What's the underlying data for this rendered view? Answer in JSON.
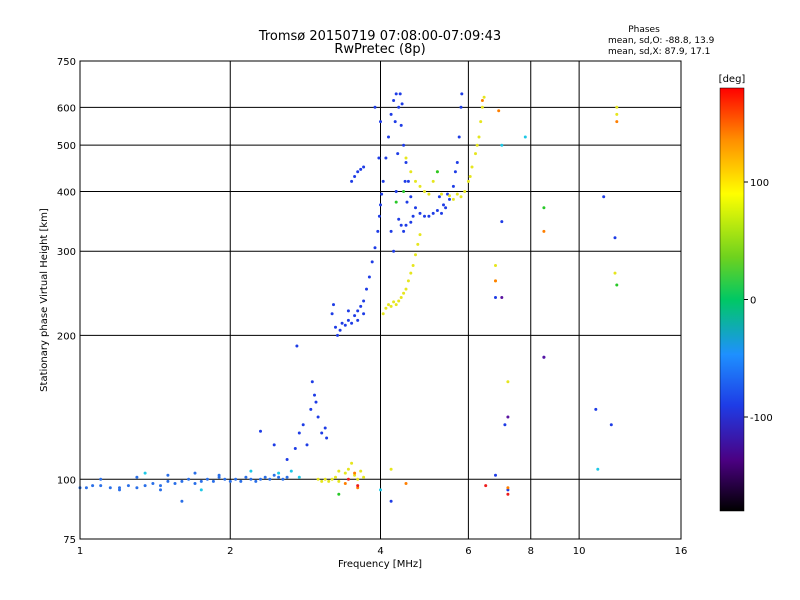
{
  "chart_data": {
    "type": "scatter",
    "title": "Tromsø 20150719 07:08:00-07:09:43",
    "subtitle": "RwPretec (8p)",
    "xlabel": "Frequency [MHz]",
    "ylabel": "Stationary phase Virtual Height [km]",
    "x_scale": "log",
    "y_scale": "log",
    "xlim": [
      1,
      16
    ],
    "ylim": [
      75,
      750
    ],
    "x_ticks": [
      1,
      2,
      4,
      6,
      8,
      10,
      16
    ],
    "x_tick_labels": [
      "1",
      "2",
      "4",
      "6",
      "8",
      "10",
      "16"
    ],
    "y_ticks": [
      75,
      100,
      200,
      300,
      400,
      500,
      600,
      750
    ],
    "y_tick_labels": [
      "75",
      "100",
      "200",
      "300",
      "400",
      "500",
      "600",
      "750"
    ],
    "grid": true,
    "phases_box": {
      "heading": "Phases",
      "line_o": "mean, sd,O: -88.8, 13.9",
      "line_x": "mean, sd,X:  87.9, 17.1"
    },
    "colorbar": {
      "label": "[deg]",
      "range": [
        -180,
        180
      ],
      "ticks": [
        100,
        0,
        -100
      ],
      "tick_labels": [
        "100",
        "0",
        "-100"
      ]
    },
    "series": [
      {
        "phase": -95,
        "color": "#2a6fe8",
        "points": [
          [
            1.0,
            96
          ],
          [
            1.03,
            96
          ],
          [
            1.06,
            97
          ],
          [
            1.1,
            97
          ],
          [
            1.15,
            96
          ],
          [
            1.2,
            96
          ],
          [
            1.25,
            97
          ],
          [
            1.3,
            96
          ],
          [
            1.35,
            97
          ],
          [
            1.4,
            98
          ],
          [
            1.45,
            97
          ],
          [
            1.5,
            99
          ],
          [
            1.55,
            98
          ],
          [
            1.6,
            99
          ],
          [
            1.65,
            100
          ],
          [
            1.7,
            98
          ],
          [
            1.75,
            99
          ],
          [
            1.8,
            100
          ],
          [
            1.85,
            99
          ],
          [
            1.9,
            101
          ],
          [
            1.95,
            100
          ],
          [
            2.0,
            99
          ],
          [
            2.05,
            100
          ],
          [
            2.1,
            99
          ],
          [
            2.15,
            101
          ],
          [
            2.2,
            100
          ],
          [
            2.25,
            99
          ],
          [
            2.3,
            100
          ],
          [
            2.35,
            101
          ],
          [
            2.4,
            100
          ],
          [
            2.45,
            102
          ],
          [
            2.5,
            101
          ],
          [
            2.55,
            100
          ],
          [
            2.6,
            101
          ],
          [
            1.1,
            100
          ],
          [
            1.3,
            101
          ],
          [
            1.5,
            102
          ],
          [
            1.7,
            103
          ],
          [
            1.9,
            102
          ],
          [
            1.6,
            90
          ],
          [
            1.2,
            95
          ],
          [
            1.45,
            95
          ]
        ]
      },
      {
        "phase": -110,
        "color": "#1e3ce6",
        "points": [
          [
            2.3,
            126
          ],
          [
            2.45,
            118
          ],
          [
            2.6,
            110
          ],
          [
            2.7,
            116
          ],
          [
            2.75,
            125
          ],
          [
            2.8,
            130
          ],
          [
            2.85,
            118
          ],
          [
            2.9,
            140
          ],
          [
            2.95,
            150
          ],
          [
            3.0,
            135
          ],
          [
            3.05,
            125
          ],
          [
            3.1,
            128
          ],
          [
            3.12,
            122
          ],
          [
            2.92,
            160
          ],
          [
            2.97,
            145
          ],
          [
            2.72,
            190
          ],
          [
            3.2,
            222
          ],
          [
            3.22,
            232
          ],
          [
            3.25,
            208
          ],
          [
            3.28,
            200
          ],
          [
            3.32,
            205
          ],
          [
            3.4,
            210
          ],
          [
            3.45,
            215
          ],
          [
            3.5,
            212
          ],
          [
            3.55,
            220
          ],
          [
            3.6,
            225
          ],
          [
            3.65,
            230
          ],
          [
            3.7,
            236
          ],
          [
            3.75,
            250
          ],
          [
            3.8,
            265
          ],
          [
            3.85,
            285
          ],
          [
            3.9,
            305
          ],
          [
            3.95,
            330
          ],
          [
            3.98,
            355
          ],
          [
            4.0,
            375
          ],
          [
            4.02,
            395
          ],
          [
            4.05,
            420
          ],
          [
            4.1,
            470
          ],
          [
            4.15,
            520
          ],
          [
            4.2,
            580
          ],
          [
            3.9,
            600
          ],
          [
            4.0,
            560
          ],
          [
            3.97,
            470
          ],
          [
            3.5,
            420
          ],
          [
            3.55,
            430
          ],
          [
            3.6,
            440
          ],
          [
            3.65,
            445
          ],
          [
            3.7,
            450
          ],
          [
            4.25,
            620
          ],
          [
            4.3,
            640
          ],
          [
            4.35,
            600
          ],
          [
            4.4,
            550
          ],
          [
            4.45,
            500
          ],
          [
            4.5,
            460
          ],
          [
            4.55,
            420
          ],
          [
            4.6,
            390
          ],
          [
            4.7,
            370
          ],
          [
            4.8,
            360
          ],
          [
            4.9,
            355
          ],
          [
            5.0,
            355
          ],
          [
            5.1,
            360
          ],
          [
            5.2,
            365
          ],
          [
            5.3,
            360
          ],
          [
            5.4,
            370
          ],
          [
            5.5,
            385
          ],
          [
            5.6,
            410
          ],
          [
            5.7,
            460
          ],
          [
            5.75,
            520
          ],
          [
            5.8,
            600
          ],
          [
            5.82,
            640
          ],
          [
            4.3,
            400
          ],
          [
            4.35,
            350
          ],
          [
            4.4,
            340
          ],
          [
            4.45,
            330
          ],
          [
            4.5,
            340
          ],
          [
            4.6,
            345
          ],
          [
            4.2,
            330
          ],
          [
            4.25,
            300
          ],
          [
            4.38,
            640
          ],
          [
            4.42,
            610
          ],
          [
            4.28,
            560
          ],
          [
            4.33,
            480
          ],
          [
            4.48,
            420
          ],
          [
            4.52,
            380
          ],
          [
            4.65,
            355
          ],
          [
            5.25,
            390
          ],
          [
            5.35,
            375
          ],
          [
            5.45,
            395
          ],
          [
            5.65,
            440
          ],
          [
            3.6,
            215
          ],
          [
            3.35,
            212
          ],
          [
            3.45,
            225
          ],
          [
            3.7,
            222
          ],
          [
            6.8,
            240
          ],
          [
            7.1,
            130
          ],
          [
            7.0,
            346
          ],
          [
            10.8,
            140
          ],
          [
            11.6,
            130
          ],
          [
            11.2,
            390
          ],
          [
            11.8,
            320
          ],
          [
            8.5,
            180
          ],
          [
            7.2,
            95
          ],
          [
            6.8,
            102
          ],
          [
            4.2,
            90
          ]
        ]
      },
      {
        "phase": 85,
        "color": "#e6e61e",
        "points": [
          [
            3.0,
            100
          ],
          [
            3.05,
            99
          ],
          [
            3.1,
            100
          ],
          [
            3.15,
            99
          ],
          [
            3.2,
            100
          ],
          [
            3.25,
            101
          ],
          [
            3.3,
            99
          ],
          [
            3.4,
            103
          ],
          [
            3.45,
            105
          ],
          [
            3.5,
            108
          ],
          [
            3.55,
            102
          ],
          [
            3.6,
            100
          ],
          [
            3.65,
            104
          ],
          [
            3.7,
            101
          ],
          [
            4.05,
            222
          ],
          [
            4.1,
            228
          ],
          [
            4.15,
            232
          ],
          [
            4.2,
            230
          ],
          [
            4.25,
            235
          ],
          [
            4.3,
            232
          ],
          [
            4.35,
            236
          ],
          [
            4.4,
            240
          ],
          [
            4.45,
            245
          ],
          [
            4.5,
            250
          ],
          [
            4.55,
            260
          ],
          [
            4.6,
            270
          ],
          [
            4.65,
            280
          ],
          [
            4.7,
            295
          ],
          [
            4.75,
            310
          ],
          [
            4.8,
            325
          ],
          [
            4.5,
            470
          ],
          [
            4.6,
            440
          ],
          [
            4.7,
            420
          ],
          [
            4.8,
            410
          ],
          [
            4.9,
            400
          ],
          [
            5.0,
            395
          ],
          [
            5.1,
            420
          ],
          [
            5.2,
            440
          ],
          [
            5.3,
            395
          ],
          [
            5.5,
            392
          ],
          [
            5.7,
            395
          ],
          [
            5.9,
            400
          ],
          [
            6.0,
            420
          ],
          [
            6.1,
            450
          ],
          [
            6.2,
            480
          ],
          [
            6.3,
            520
          ],
          [
            6.35,
            560
          ],
          [
            6.4,
            600
          ],
          [
            6.45,
            630
          ],
          [
            5.8,
            390
          ],
          [
            5.6,
            385
          ],
          [
            6.25,
            500
          ],
          [
            6.05,
            430
          ],
          [
            6.8,
            280
          ],
          [
            6.8,
            260
          ],
          [
            7.2,
            160
          ],
          [
            11.9,
            600
          ],
          [
            11.9,
            580
          ],
          [
            11.8,
            270
          ],
          [
            4.2,
            105
          ],
          [
            3.3,
            104
          ]
        ]
      },
      {
        "phase": 140,
        "color": "#ff7f00",
        "points": [
          [
            3.4,
            98
          ],
          [
            3.55,
            103
          ],
          [
            6.4,
            620
          ],
          [
            6.9,
            590
          ],
          [
            8.5,
            330
          ],
          [
            11.9,
            560
          ],
          [
            7.2,
            96
          ],
          [
            6.8,
            260
          ],
          [
            4.5,
            98
          ],
          [
            3.6,
            96
          ]
        ]
      },
      {
        "phase": 170,
        "color": "#ee1c1c",
        "points": [
          [
            3.45,
            100
          ],
          [
            3.6,
            97
          ],
          [
            7.2,
            93
          ],
          [
            6.5,
            97
          ]
        ]
      },
      {
        "phase": 10,
        "color": "#28c828",
        "points": [
          [
            8.5,
            370
          ],
          [
            3.3,
            93
          ],
          [
            11.9,
            255
          ],
          [
            4.3,
            380
          ],
          [
            5.2,
            440
          ],
          [
            4.45,
            400
          ]
        ]
      },
      {
        "phase": -40,
        "color": "#1ec8e6",
        "points": [
          [
            7.8,
            520
          ],
          [
            2.2,
            104
          ],
          [
            2.5,
            103
          ],
          [
            2.65,
            104
          ],
          [
            2.75,
            101
          ],
          [
            4.0,
            95
          ],
          [
            10.9,
            105
          ],
          [
            7.0,
            500
          ],
          [
            1.75,
            95
          ],
          [
            1.35,
            103
          ]
        ]
      },
      {
        "phase": -150,
        "color": "#5a14a0",
        "points": [
          [
            7.0,
            240
          ],
          [
            8.5,
            180
          ],
          [
            7.2,
            135
          ]
        ]
      }
    ]
  }
}
